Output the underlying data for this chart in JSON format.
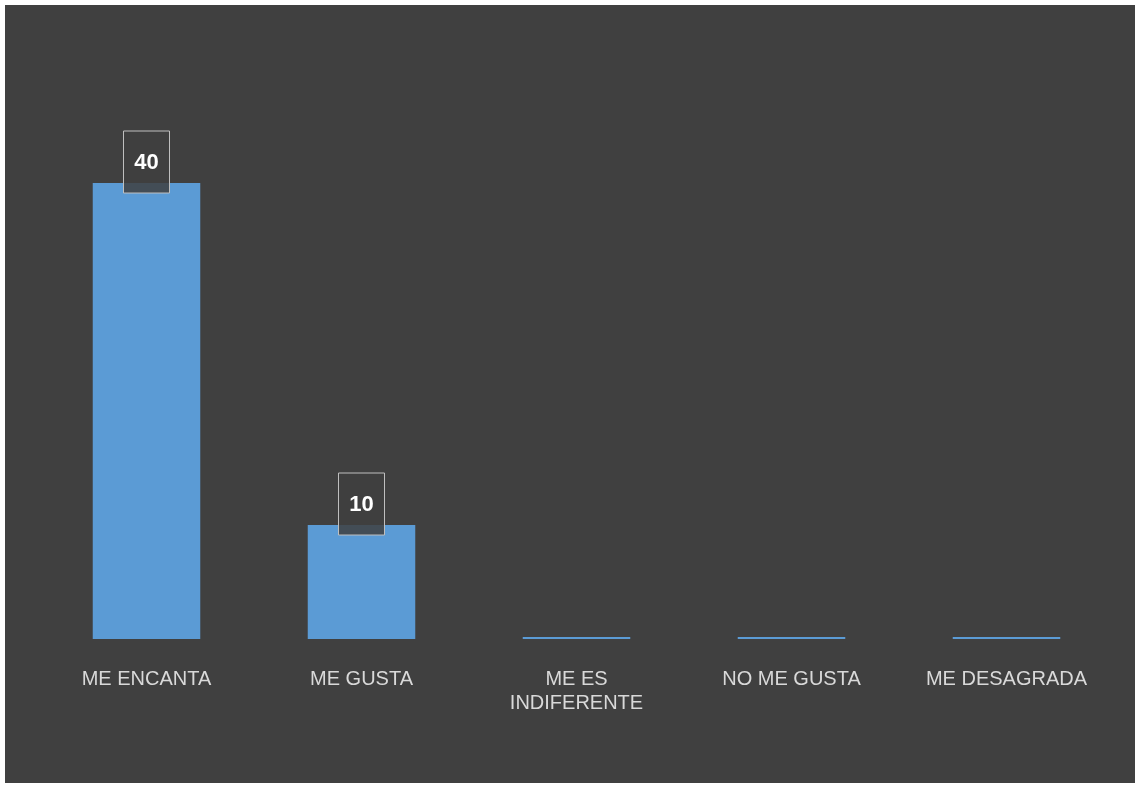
{
  "chart_data": {
    "type": "bar",
    "categories": [
      "ME ENCANTA",
      "ME GUSTA",
      "ME ES INDIFERENTE",
      "NO ME GUSTA",
      "ME DESAGRADA"
    ],
    "values": [
      40,
      10,
      0,
      0,
      0
    ],
    "value_labels": [
      "40",
      "10",
      null,
      null,
      null
    ],
    "color": "#5b9bd5",
    "grid": false,
    "legend": false
  }
}
